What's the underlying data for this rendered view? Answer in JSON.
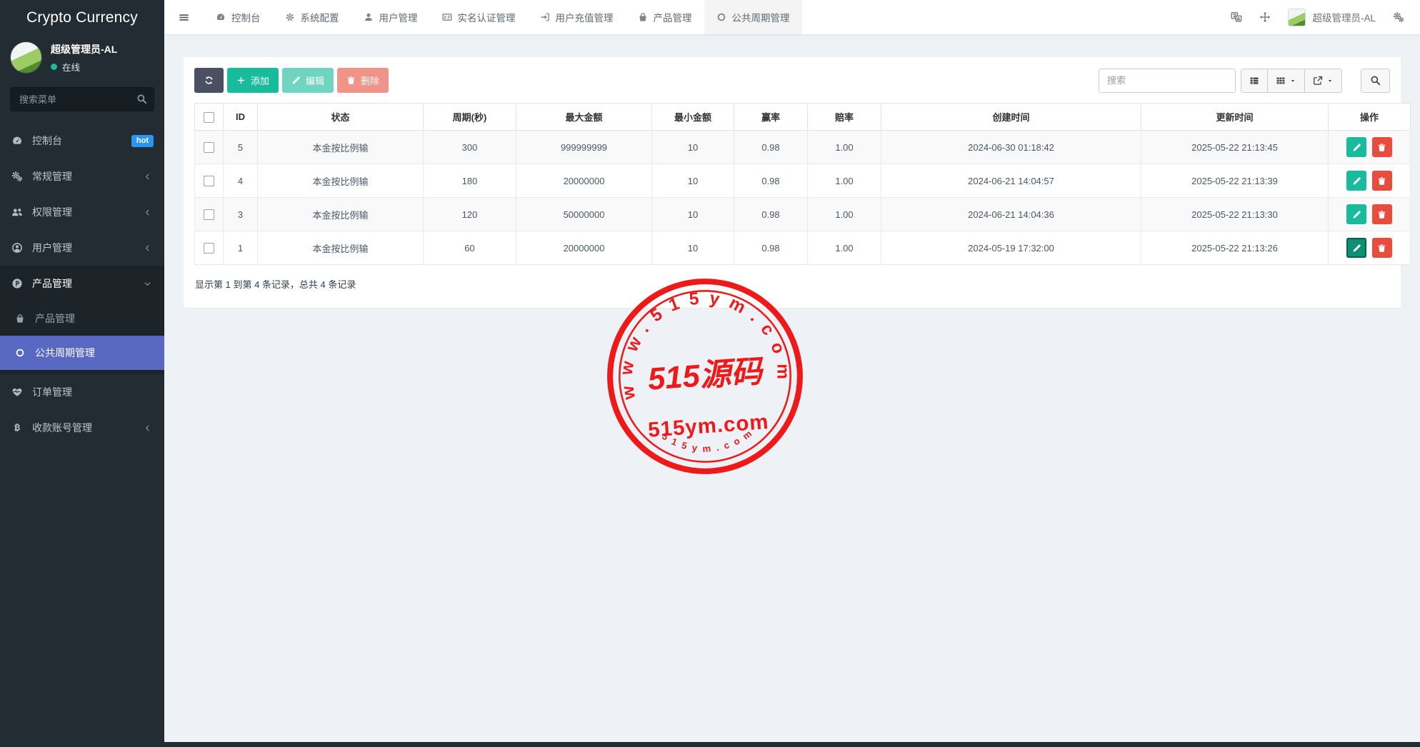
{
  "app": {
    "title": "Crypto Currency"
  },
  "sidebar": {
    "user": {
      "name": "超级管理员-AL",
      "status": "在线"
    },
    "search_placeholder": "搜索菜单",
    "items": [
      {
        "label": "控制台",
        "icon": "dashboard-icon",
        "badge": "hot"
      },
      {
        "label": "常规管理",
        "icon": "cogs-icon"
      },
      {
        "label": "权限管理",
        "icon": "users-icon"
      },
      {
        "label": "用户管理",
        "icon": "user-circle-icon"
      },
      {
        "label": "产品管理",
        "icon": "product-p-icon"
      },
      {
        "label": "产品管理",
        "icon": "bag-icon"
      },
      {
        "label": "公共周期管理",
        "icon": "circle-o-icon"
      },
      {
        "label": "订单管理",
        "icon": "heartbeat-icon"
      },
      {
        "label": "收款账号管理",
        "icon": "bitcoin-icon"
      }
    ]
  },
  "topbar": {
    "tabs": [
      {
        "label": "控制台",
        "icon": "dashboard-icon"
      },
      {
        "label": "系统配置",
        "icon": "gear-icon"
      },
      {
        "label": "用户管理",
        "icon": "user-icon"
      },
      {
        "label": "实名认证管理",
        "icon": "id-card-icon"
      },
      {
        "label": "用户充值管理",
        "icon": "sign-in-icon"
      },
      {
        "label": "产品管理",
        "icon": "bag-icon"
      },
      {
        "label": "公共周期管理",
        "icon": "circle-o-icon"
      }
    ],
    "user_name": "超级管理员-AL"
  },
  "toolbar": {
    "add_label": "添加",
    "edit_label": "编辑",
    "delete_label": "删除",
    "search_placeholder": "搜索"
  },
  "table": {
    "headers": [
      "ID",
      "状态",
      "周期(秒)",
      "最大金额",
      "最小金额",
      "赢率",
      "赔率",
      "创建时间",
      "更新时间",
      "操作"
    ],
    "rows": [
      {
        "id": "5",
        "status": "本金按比例输",
        "period": "300",
        "max": "999999999",
        "min": "10",
        "win": "0.98",
        "odds": "1.00",
        "created": "2024-06-30 01:18:42",
        "updated": "2025-05-22 21:13:45"
      },
      {
        "id": "4",
        "status": "本金按比例输",
        "period": "180",
        "max": "20000000",
        "min": "10",
        "win": "0.98",
        "odds": "1.00",
        "created": "2024-06-21 14:04:57",
        "updated": "2025-05-22 21:13:39"
      },
      {
        "id": "3",
        "status": "本金按比例输",
        "period": "120",
        "max": "50000000",
        "min": "10",
        "win": "0.98",
        "odds": "1.00",
        "created": "2024-06-21 14:04:36",
        "updated": "2025-05-22 21:13:30"
      },
      {
        "id": "1",
        "status": "本金按比例输",
        "period": "60",
        "max": "20000000",
        "min": "10",
        "win": "0.98",
        "odds": "1.00",
        "created": "2024-05-19 17:32:00",
        "updated": "2025-05-22 21:13:26"
      }
    ],
    "summary": "显示第 1 到第 4 条记录，总共 4 条记录"
  },
  "watermark": {
    "arc_text": "www.515ym.com",
    "center_text": "515源码",
    "sub_text": "515ym.com",
    "bottom_arc_text": "515ym.com",
    "color": "#ee1111"
  },
  "colors": {
    "accent_green": "#18bc9c",
    "danger_red": "#e74c3c",
    "active_menu": "#5968c0",
    "hot_badge": "#2b96f1",
    "sidebar_bg": "#242c33"
  }
}
